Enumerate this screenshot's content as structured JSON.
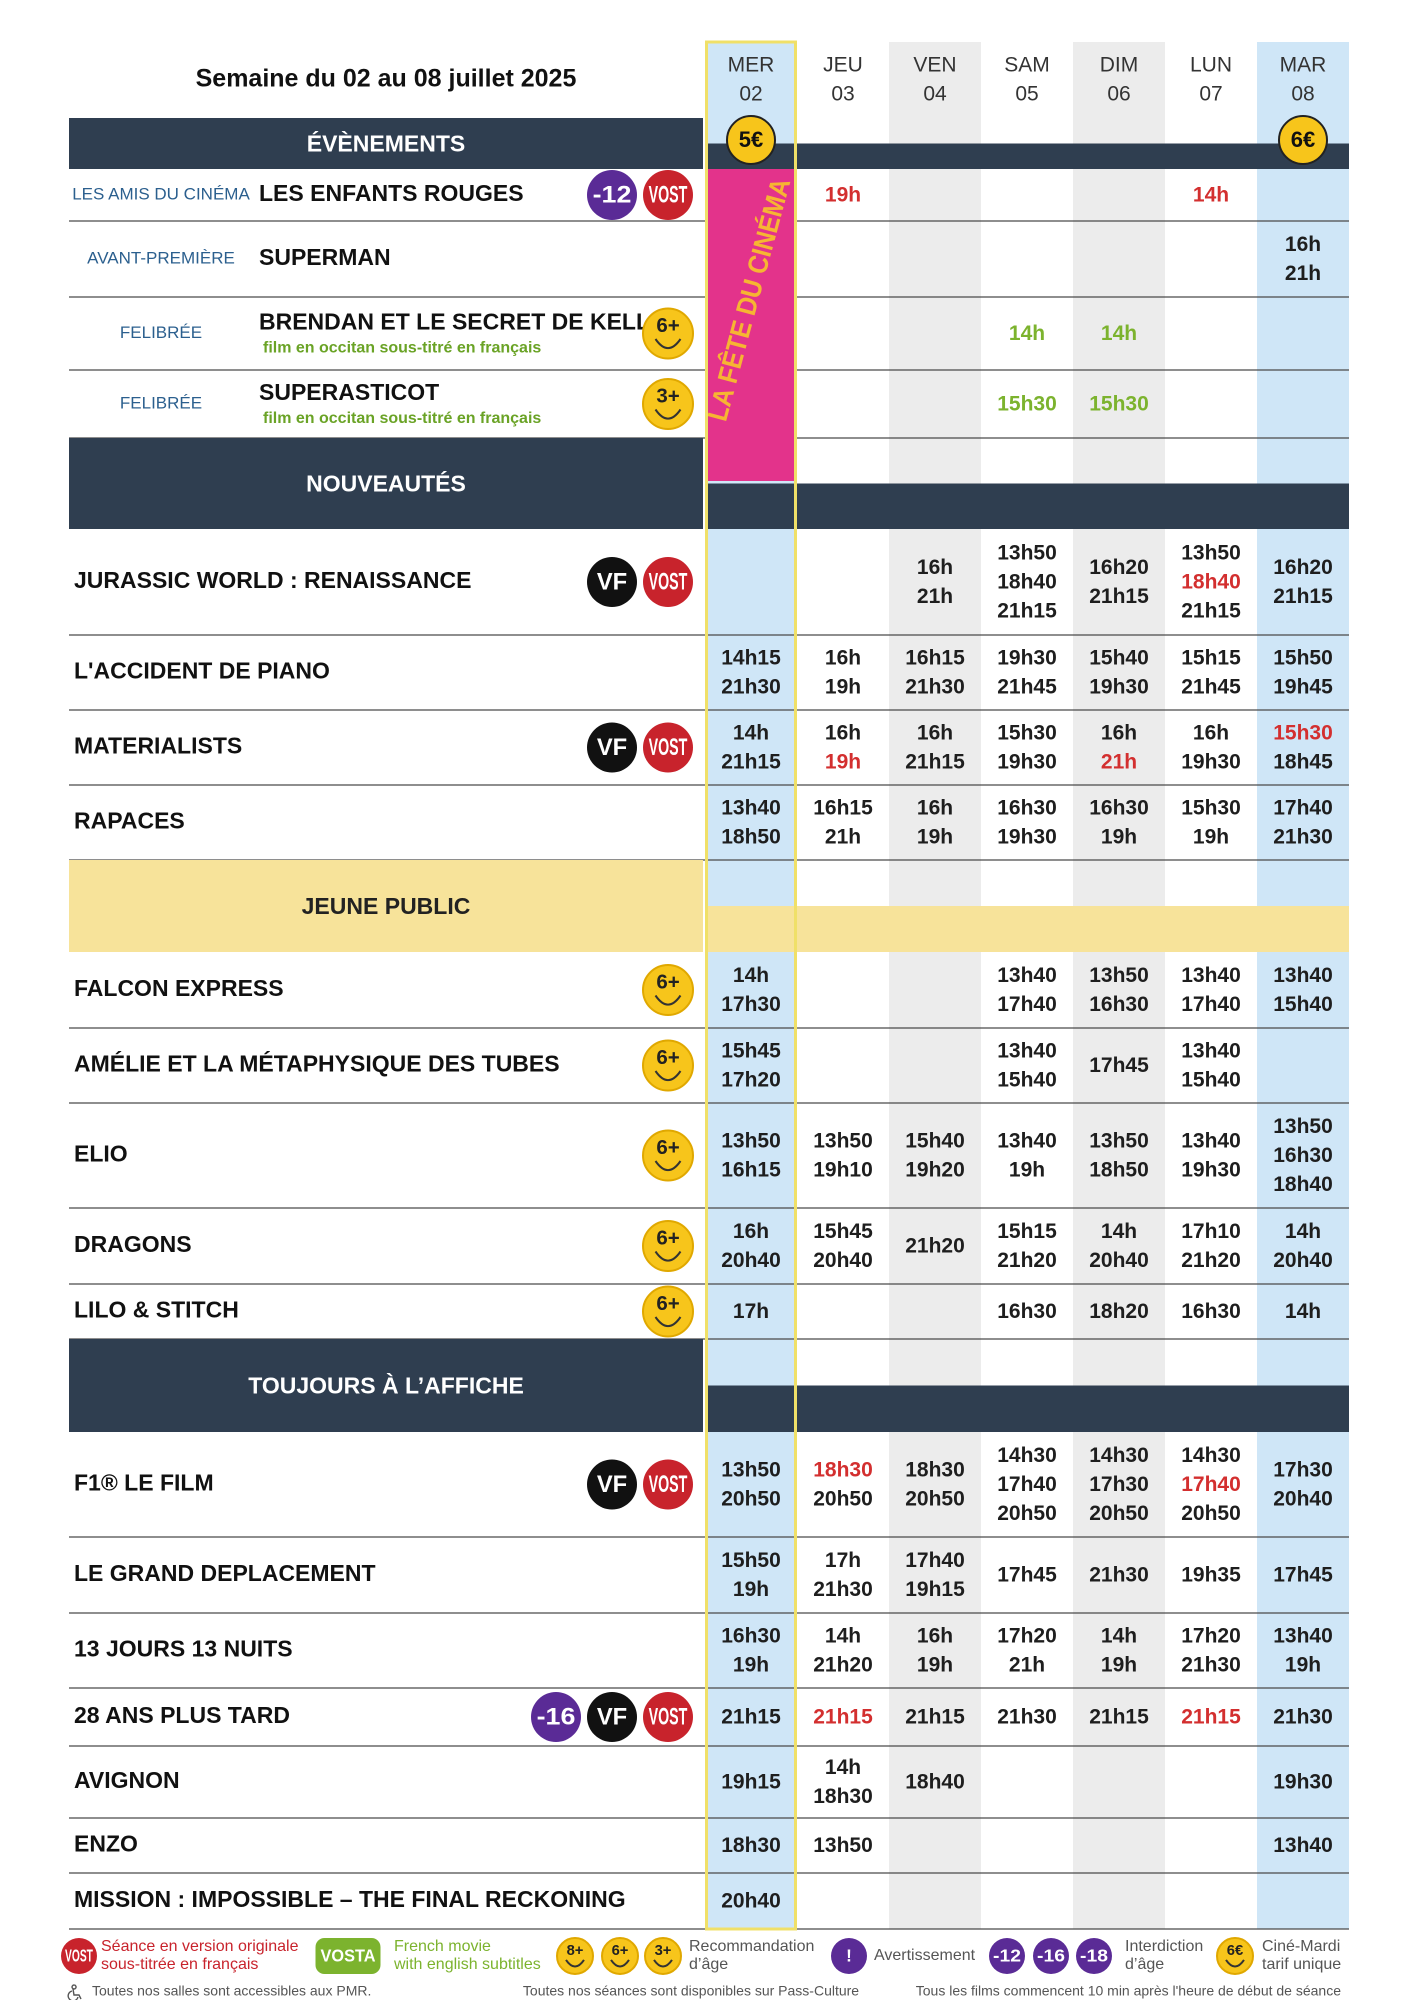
{
  "header": {
    "title": "Semaine du 02 au 08 juillet 2025",
    "days": [
      {
        "name": "MER",
        "date": "02"
      },
      {
        "name": "JEU",
        "date": "03"
      },
      {
        "name": "VEN",
        "date": "04"
      },
      {
        "name": "SAM",
        "date": "05"
      },
      {
        "name": "DIM",
        "date": "06"
      },
      {
        "name": "LUN",
        "date": "07"
      },
      {
        "name": "MAR",
        "date": "08"
      }
    ],
    "prices": [
      "5€",
      null,
      null,
      null,
      null,
      null,
      "6€"
    ],
    "promo": "LA FÊTE DU CINÉMA"
  },
  "sections": [
    {
      "title": "ÉVÈNEMENTS",
      "color": "#2f3e50",
      "rows": [
        {
          "label": "LES AMIS DU CINÉMA",
          "title": "LES ENFANTS ROUGES",
          "badges": [
            {
              "text": "-12",
              "color": "#5a2b96"
            },
            {
              "text": "VOST",
              "color": "#c8232c"
            }
          ],
          "sessions": [
            [],
            [
              {
                "time": "19h",
                "color": "#d32f2f"
              }
            ],
            [],
            [],
            [],
            [
              {
                "time": "14h",
                "color": "#d32f2f"
              }
            ],
            []
          ]
        },
        {
          "label": "AVANT-PREMIÈRE",
          "title": "SUPERMAN",
          "badges": [],
          "sessions": [
            [],
            [],
            [],
            [],
            [],
            [],
            [
              "16h",
              "21h"
            ]
          ]
        },
        {
          "label": "FELIBRÉE",
          "title": "BRENDAN ET LE SECRET DE KELLS",
          "subtitle": "film en occitan sous-titré en français",
          "badges": [
            {
              "text": "6+",
              "color": "#f7c51b"
            }
          ],
          "sessions": [
            [],
            [],
            [],
            [
              {
                "time": "14h",
                "color": "#7cb32e"
              }
            ],
            [
              {
                "time": "14h",
                "color": "#7cb32e"
              }
            ],
            [],
            []
          ]
        },
        {
          "label": "FELIBRÉE",
          "title": "SUPERASTICOT",
          "subtitle": "film en occitan sous-titré en français",
          "badges": [
            {
              "text": "3+",
              "color": "#f7c51b"
            }
          ],
          "sessions": [
            [],
            [],
            [],
            [
              {
                "time": "15h30",
                "color": "#7cb32e"
              }
            ],
            [
              {
                "time": "15h30",
                "color": "#7cb32e"
              }
            ],
            [],
            []
          ]
        }
      ]
    },
    {
      "title": "NOUVEAUTÉS",
      "color": "#2f3e50",
      "rows": [
        {
          "title": "JURASSIC WORLD : RENAISSANCE",
          "badges": [
            {
              "text": "VF",
              "color": "#111111"
            },
            {
              "text": "VOST",
              "color": "#c8232c"
            }
          ],
          "sessions": [
            [],
            [],
            [
              "16h",
              "21h"
            ],
            [
              "13h50",
              "18h40",
              "21h15"
            ],
            [
              "16h20",
              "21h15"
            ],
            [
              "13h50",
              {
                "time": "18h40",
                "color": "#d32f2f"
              },
              "21h15"
            ],
            [
              "16h20",
              "21h15"
            ]
          ]
        },
        {
          "title": "L'ACCIDENT DE PIANO",
          "badges": [],
          "sessions": [
            [
              "14h15",
              "21h30"
            ],
            [
              "16h",
              "19h"
            ],
            [
              "16h15",
              "21h30"
            ],
            [
              "19h30",
              "21h45"
            ],
            [
              "15h40",
              "19h30"
            ],
            [
              "15h15",
              "21h45"
            ],
            [
              "15h50",
              "19h45"
            ]
          ]
        },
        {
          "title": "MATERIALISTS",
          "badges": [
            {
              "text": "VF",
              "color": "#111111"
            },
            {
              "text": "VOST",
              "color": "#c8232c"
            }
          ],
          "sessions": [
            [
              "14h",
              "21h15"
            ],
            [
              "16h",
              {
                "time": "19h",
                "color": "#d32f2f"
              }
            ],
            [
              "16h",
              "21h15"
            ],
            [
              "15h30",
              "19h30"
            ],
            [
              "16h",
              {
                "time": "21h",
                "color": "#d32f2f"
              }
            ],
            [
              "16h",
              "19h30"
            ],
            [
              {
                "time": "15h30",
                "color": "#d32f2f"
              },
              "18h45"
            ]
          ]
        },
        {
          "title": "RAPACES",
          "badges": [],
          "sessions": [
            [
              "13h40",
              "18h50"
            ],
            [
              "16h15",
              "21h"
            ],
            [
              "16h",
              "19h"
            ],
            [
              "16h30",
              "19h30"
            ],
            [
              "16h30",
              "19h"
            ],
            [
              "15h30",
              "19h"
            ],
            [
              "17h40",
              "21h30"
            ]
          ]
        }
      ]
    },
    {
      "title": "JEUNE PUBLIC",
      "color": "#f7e39a",
      "rows": [
        {
          "title": "FALCON EXPRESS",
          "badges": [
            {
              "text": "6+",
              "color": "#f7c51b"
            }
          ],
          "sessions": [
            [
              "14h",
              "17h30"
            ],
            [],
            [],
            [
              "13h40",
              "17h40"
            ],
            [
              "13h50",
              "16h30"
            ],
            [
              "13h40",
              "17h40"
            ],
            [
              "13h40",
              "15h40"
            ]
          ]
        },
        {
          "title": "AMÉLIE ET LA MÉTAPHYSIQUE DES TUBES",
          "badges": [
            {
              "text": "6+",
              "color": "#f7c51b"
            }
          ],
          "sessions": [
            [
              "15h45",
              "17h20"
            ],
            [],
            [],
            [
              "13h40",
              "15h40"
            ],
            [
              "17h45"
            ],
            [
              "13h40",
              "15h40"
            ],
            []
          ]
        },
        {
          "title": "ELIO",
          "badges": [
            {
              "text": "6+",
              "color": "#f7c51b"
            }
          ],
          "sessions": [
            [
              "13h50",
              "16h15"
            ],
            [
              "13h50",
              "19h10"
            ],
            [
              "15h40",
              "19h20"
            ],
            [
              "13h40",
              "19h"
            ],
            [
              "13h50",
              "18h50"
            ],
            [
              "13h40",
              "19h30"
            ],
            [
              "13h50",
              "16h30",
              "18h40"
            ]
          ]
        },
        {
          "title": "DRAGONS",
          "badges": [
            {
              "text": "6+",
              "color": "#f7c51b"
            }
          ],
          "sessions": [
            [
              "16h",
              "20h40"
            ],
            [
              "15h45",
              "20h40"
            ],
            [
              "21h20"
            ],
            [
              "15h15",
              "21h20"
            ],
            [
              "14h",
              "20h40"
            ],
            [
              "17h10",
              "21h20"
            ],
            [
              "14h",
              "20h40"
            ]
          ]
        },
        {
          "title": "LILO & STITCH",
          "badges": [
            {
              "text": "6+",
              "color": "#f7c51b"
            }
          ],
          "sessions": [
            [
              "17h"
            ],
            [],
            [],
            [
              "16h30"
            ],
            [
              "18h20"
            ],
            [
              "16h30"
            ],
            [
              "14h"
            ]
          ]
        }
      ]
    },
    {
      "title": "TOUJOURS À L’AFFICHE",
      "color": "#2f3e50",
      "rows": [
        {
          "title": "F1® LE FILM",
          "badges": [
            {
              "text": "VF",
              "color": "#111111"
            },
            {
              "text": "VOST",
              "color": "#c8232c"
            }
          ],
          "sessions": [
            [
              "13h50",
              "20h50"
            ],
            [
              {
                "time": "18h30",
                "color": "#d32f2f"
              },
              "20h50"
            ],
            [
              "18h30",
              "20h50"
            ],
            [
              "14h30",
              "17h40",
              "20h50"
            ],
            [
              "14h30",
              "17h30",
              "20h50"
            ],
            [
              "14h30",
              {
                "time": "17h40",
                "color": "#d32f2f"
              },
              "20h50"
            ],
            [
              "17h30",
              "20h40"
            ]
          ]
        },
        {
          "title": "LE GRAND DEPLACEMENT",
          "badges": [],
          "sessions": [
            [
              "15h50",
              "19h"
            ],
            [
              "17h",
              "21h30"
            ],
            [
              "17h40",
              "19h15"
            ],
            [
              "17h45"
            ],
            [
              "21h30"
            ],
            [
              "19h35"
            ],
            [
              "17h45"
            ]
          ]
        },
        {
          "title": "13 JOURS 13 NUITS",
          "badges": [],
          "sessions": [
            [
              "16h30",
              "19h"
            ],
            [
              "14h",
              "21h20"
            ],
            [
              "16h",
              "19h"
            ],
            [
              "17h20",
              "21h"
            ],
            [
              "14h",
              "19h"
            ],
            [
              "17h20",
              "21h30"
            ],
            [
              "13h40",
              "19h"
            ]
          ]
        },
        {
          "title": "28 ANS PLUS TARD",
          "badges": [
            {
              "text": "-16",
              "color": "#5a2b96"
            },
            {
              "text": "VF",
              "color": "#111111"
            },
            {
              "text": "VOST",
              "color": "#c8232c"
            }
          ],
          "sessions": [
            [
              "21h15"
            ],
            [
              {
                "time": "21h15",
                "color": "#d32f2f"
              }
            ],
            [
              "21h15"
            ],
            [
              "21h30"
            ],
            [
              "21h15"
            ],
            [
              {
                "time": "21h15",
                "color": "#d32f2f"
              }
            ],
            [
              "21h30"
            ]
          ]
        },
        {
          "title": "AVIGNON",
          "badges": [],
          "sessions": [
            [
              "19h15"
            ],
            [
              "14h",
              "18h30"
            ],
            [
              "18h40"
            ],
            [],
            [],
            [],
            [
              "19h30"
            ]
          ]
        },
        {
          "title": "ENZO",
          "badges": [],
          "sessions": [
            [
              "18h30"
            ],
            [
              "13h50"
            ],
            [],
            [],
            [],
            [],
            [
              "13h40"
            ]
          ]
        },
        {
          "title": "MISSION : IMPOSSIBLE – THE FINAL RECKONING",
          "badges": [],
          "sessions": [
            [
              "20h40"
            ],
            [],
            [],
            [],
            [],
            [],
            []
          ]
        }
      ]
    }
  ],
  "legend": [
    {
      "badges": [
        {
          "text": "VOST",
          "color": "#c8232c"
        }
      ],
      "lines": [
        "Séance en version originale",
        "sous-titrée en français"
      ],
      "color": "#c8232c"
    },
    {
      "badges": [
        {
          "text": "VOSTA",
          "color": "#7cb32e"
        }
      ],
      "lines": [
        "French movie",
        "with english subtitles"
      ],
      "color": "#7cb32e"
    },
    {
      "badges": [
        {
          "text": "8+",
          "color": "#f7c51b"
        },
        {
          "text": "6+",
          "color": "#f7c51b"
        },
        {
          "text": "3+",
          "color": "#f7c51b"
        }
      ],
      "lines": [
        "Recommandation",
        "d’âge"
      ],
      "color": "#555555"
    },
    {
      "badges": [
        {
          "text": "!",
          "color": "#5a2b96"
        }
      ],
      "lines": [
        "Avertissement"
      ],
      "color": "#555555"
    },
    {
      "badges": [
        {
          "text": "-12",
          "color": "#5a2b96"
        },
        {
          "text": "-16",
          "color": "#5a2b96"
        },
        {
          "text": "-18",
          "color": "#5a2b96"
        }
      ],
      "lines": [
        "Interdiction",
        "d’âge"
      ],
      "color": "#555555"
    },
    {
      "badges": [
        {
          "text": "6€",
          "color": "#f7c51b"
        }
      ],
      "lines": [
        "Ciné-Mardi",
        "tarif unique"
      ],
      "color": "#555555"
    }
  ],
  "footer": [
    "Toutes nos salles sont accessibles aux PMR.",
    "Toutes nos séances sont disponibles sur Pass-Culture",
    "Tous les films commencent 10 min après l'heure de début de séance"
  ]
}
